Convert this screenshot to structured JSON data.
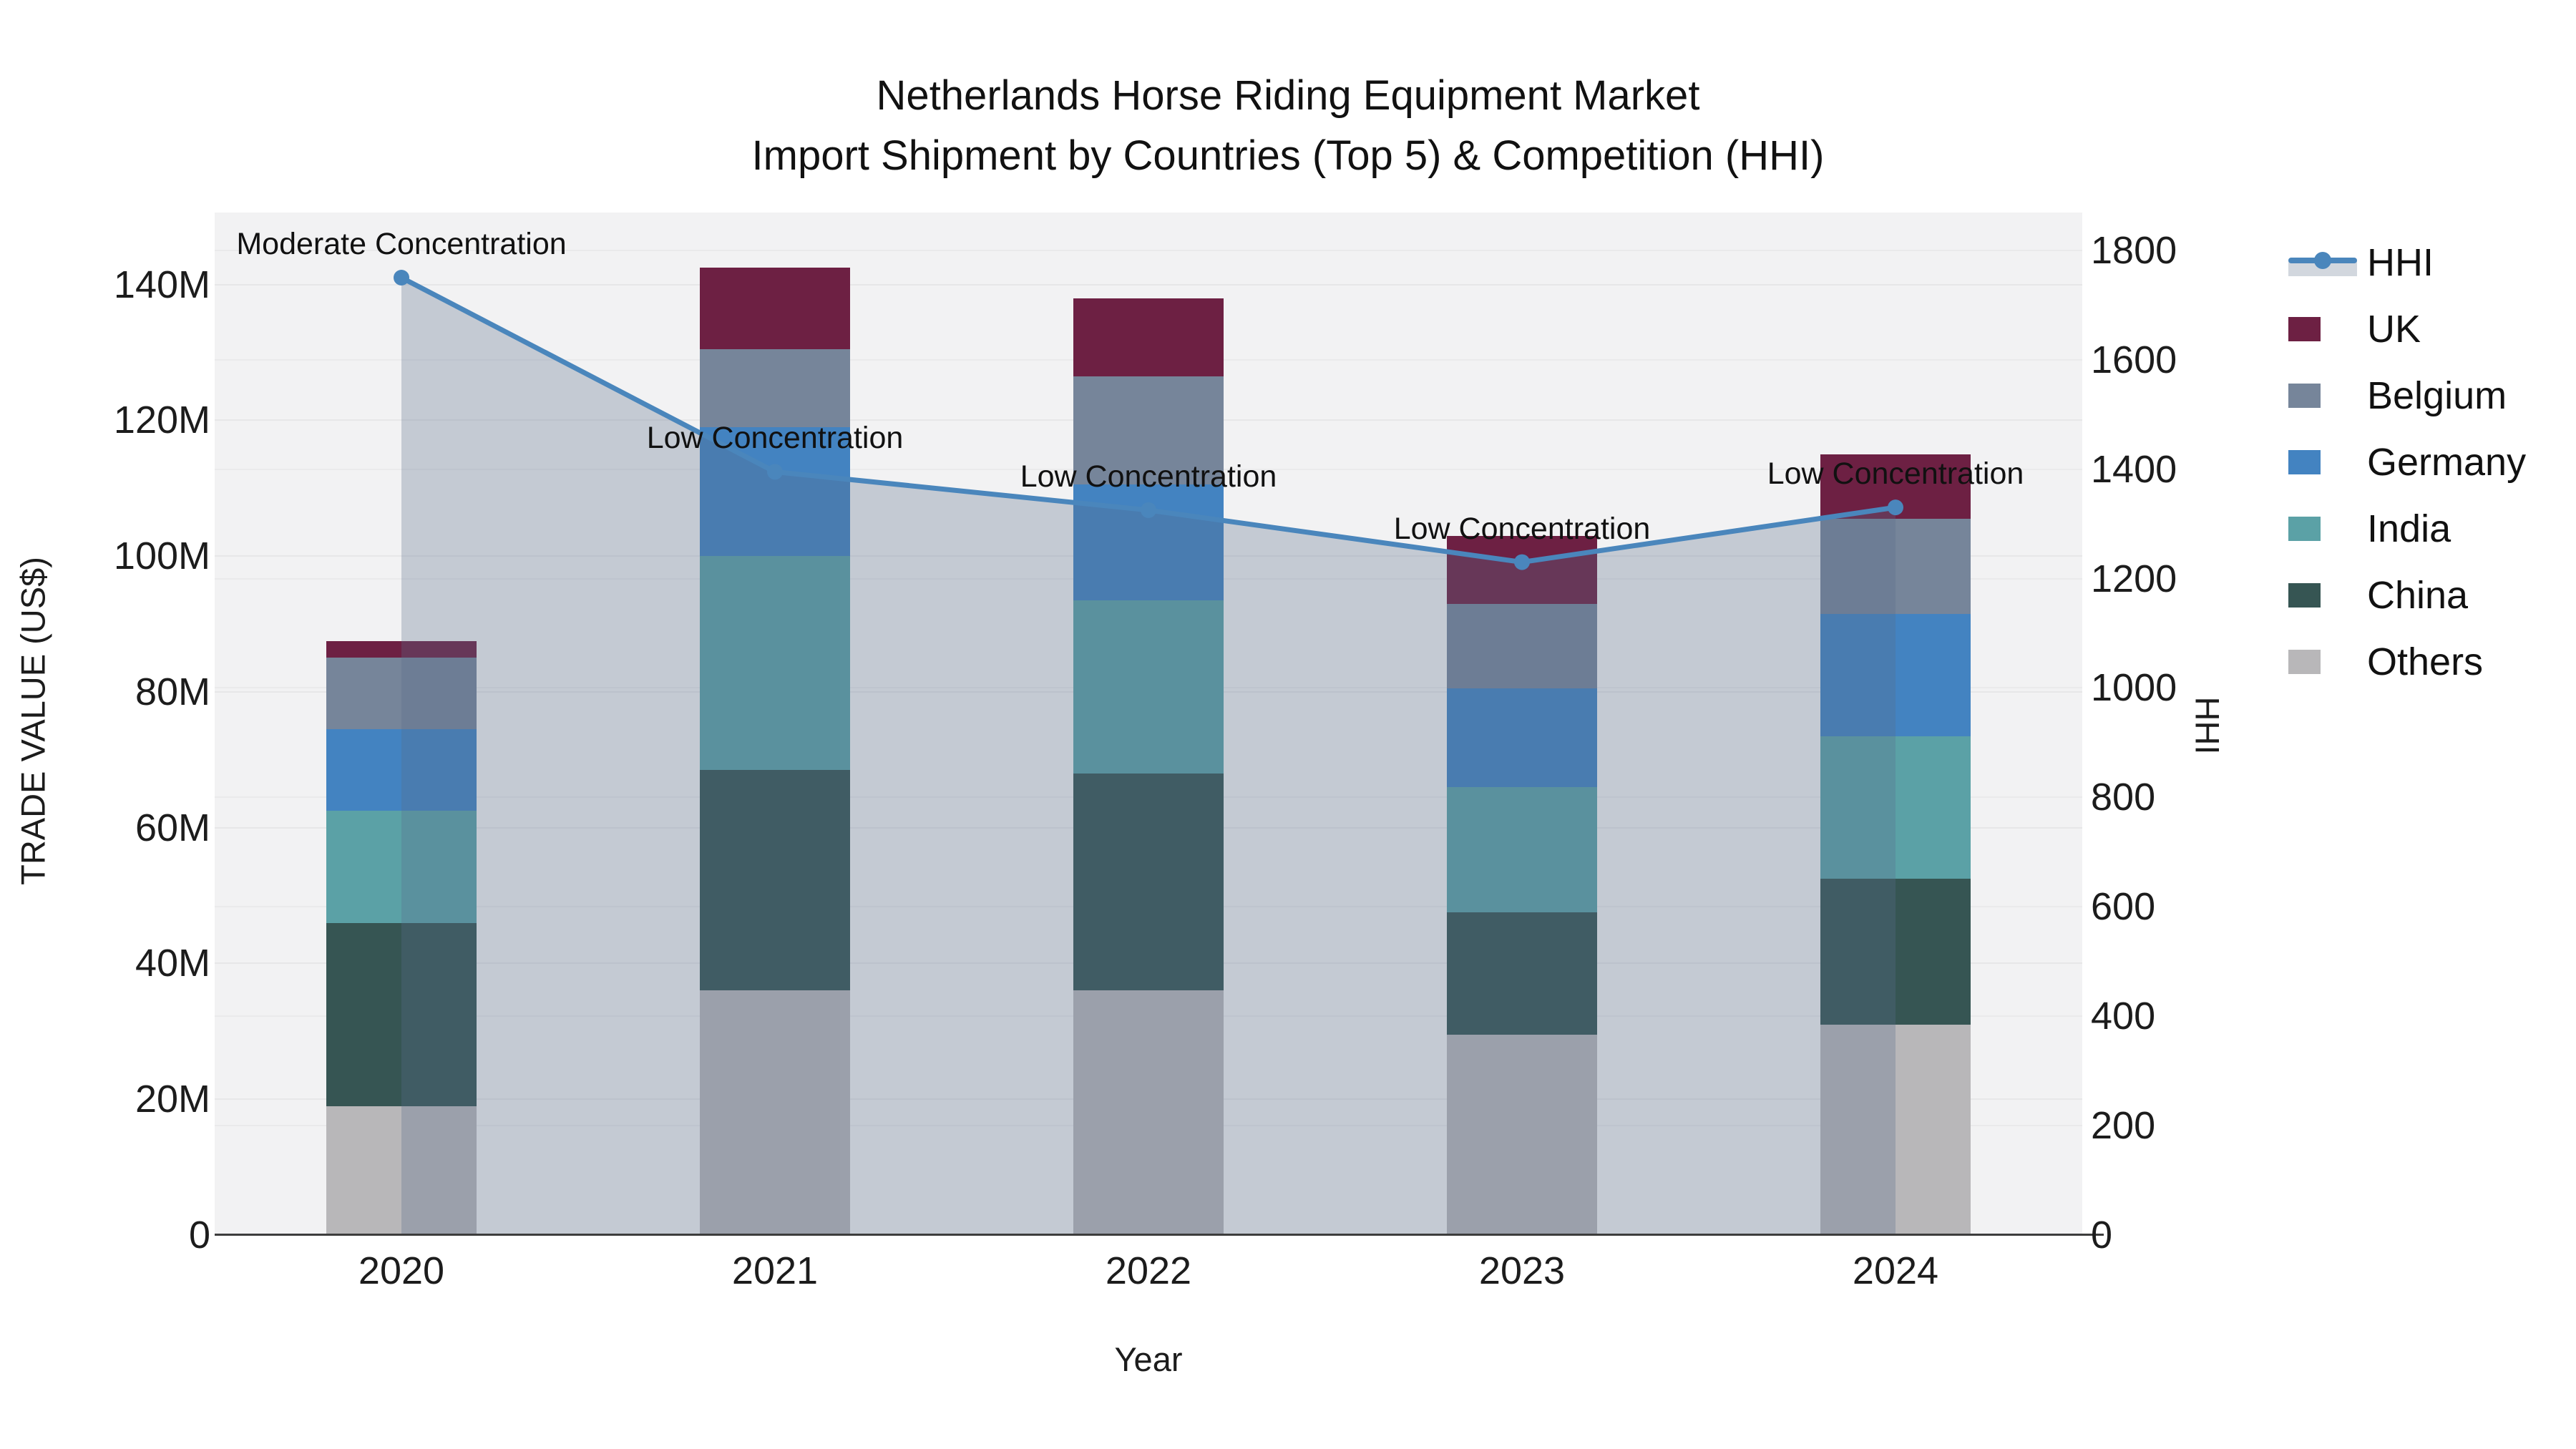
{
  "title": {
    "line1": "Netherlands Horse Riding Equipment Market",
    "line2": "Import Shipment by Countries (Top 5) & Competition (HHI)"
  },
  "x_axis": {
    "title": "Year",
    "categories": [
      "2020",
      "2021",
      "2022",
      "2023",
      "2024"
    ]
  },
  "y_axis_left": {
    "title": "TRADE VALUE (US$)",
    "tick_labels": [
      "0",
      "20M",
      "40M",
      "60M",
      "80M",
      "100M",
      "120M",
      "140M"
    ],
    "tick_values": [
      0,
      20,
      40,
      60,
      80,
      100,
      120,
      140
    ],
    "unit": "million US$"
  },
  "y_axis_right": {
    "title": "HHI",
    "tick_labels": [
      "0",
      "200",
      "400",
      "600",
      "800",
      "1000",
      "1200",
      "1400",
      "1600",
      "1800"
    ],
    "tick_values": [
      0,
      200,
      400,
      600,
      800,
      1000,
      1200,
      1400,
      1600,
      1800
    ]
  },
  "legend": [
    {
      "label": "HHI",
      "type": "line"
    },
    {
      "label": "UK",
      "type": "swatch"
    },
    {
      "label": "Belgium",
      "type": "swatch"
    },
    {
      "label": "Germany",
      "type": "swatch"
    },
    {
      "label": "India",
      "type": "swatch"
    },
    {
      "label": "China",
      "type": "swatch"
    },
    {
      "label": "Others",
      "type": "swatch"
    }
  ],
  "annotations": [
    {
      "category": "2020",
      "text": "Moderate Concentration"
    },
    {
      "category": "2021",
      "text": "Low Concentration"
    },
    {
      "category": "2022",
      "text": "Low Concentration"
    },
    {
      "category": "2023",
      "text": "Low Concentration"
    },
    {
      "category": "2024",
      "text": "Low Concentration"
    }
  ],
  "colors": {
    "UK": "#6d2043",
    "Belgium": "#76859a",
    "Germany": "#4383c1",
    "India": "#5ba1a6",
    "China": "#365553",
    "Others": "#b8b7b9",
    "hhi_line": "#4a86bc",
    "hhi_area_fill": "rgba(90,110,140,0.30)",
    "plot_background": "#f2f2f3",
    "axis_line": "#3d3d3d"
  },
  "chart_data": {
    "type": "stacked-bar+line",
    "title": "Netherlands Horse Riding Equipment Market — Import Shipment by Countries (Top 5) & Competition (HHI)",
    "categories": [
      "2020",
      "2021",
      "2022",
      "2023",
      "2024"
    ],
    "xlabel": "Year",
    "ylabel_left": "TRADE VALUE (US$)",
    "ylabel_right": "HHI",
    "bar_value_unit": "million US$",
    "ylim_left_millions": [
      0,
      150.6
    ],
    "ylim_right_hhi": [
      0,
      1869
    ],
    "grid": true,
    "legend_position": "right",
    "stack_order_bottom_to_top": [
      "Others",
      "China",
      "India",
      "Germany",
      "Belgium",
      "UK"
    ],
    "series": [
      {
        "name": "UK",
        "values": [
          2.5,
          12,
          11.5,
          10,
          9.5
        ]
      },
      {
        "name": "Belgium",
        "values": [
          10.5,
          11.5,
          16,
          12.5,
          14
        ]
      },
      {
        "name": "Germany",
        "values": [
          12,
          19,
          17,
          14.5,
          18
        ]
      },
      {
        "name": "India",
        "values": [
          16.5,
          31.5,
          25.5,
          18.5,
          21
        ]
      },
      {
        "name": "China",
        "values": [
          27,
          32.5,
          32,
          18,
          21.5
        ]
      },
      {
        "name": "Others",
        "values": [
          19,
          36,
          36,
          29.5,
          31
        ]
      }
    ],
    "bar_totals_millions": [
      87.5,
      142.5,
      138,
      103,
      115
    ],
    "line_series": {
      "name": "HHI",
      "axis": "right",
      "values": [
        1750,
        1395,
        1325,
        1230,
        1330
      ],
      "has_area_fill": true,
      "markers": true
    }
  }
}
